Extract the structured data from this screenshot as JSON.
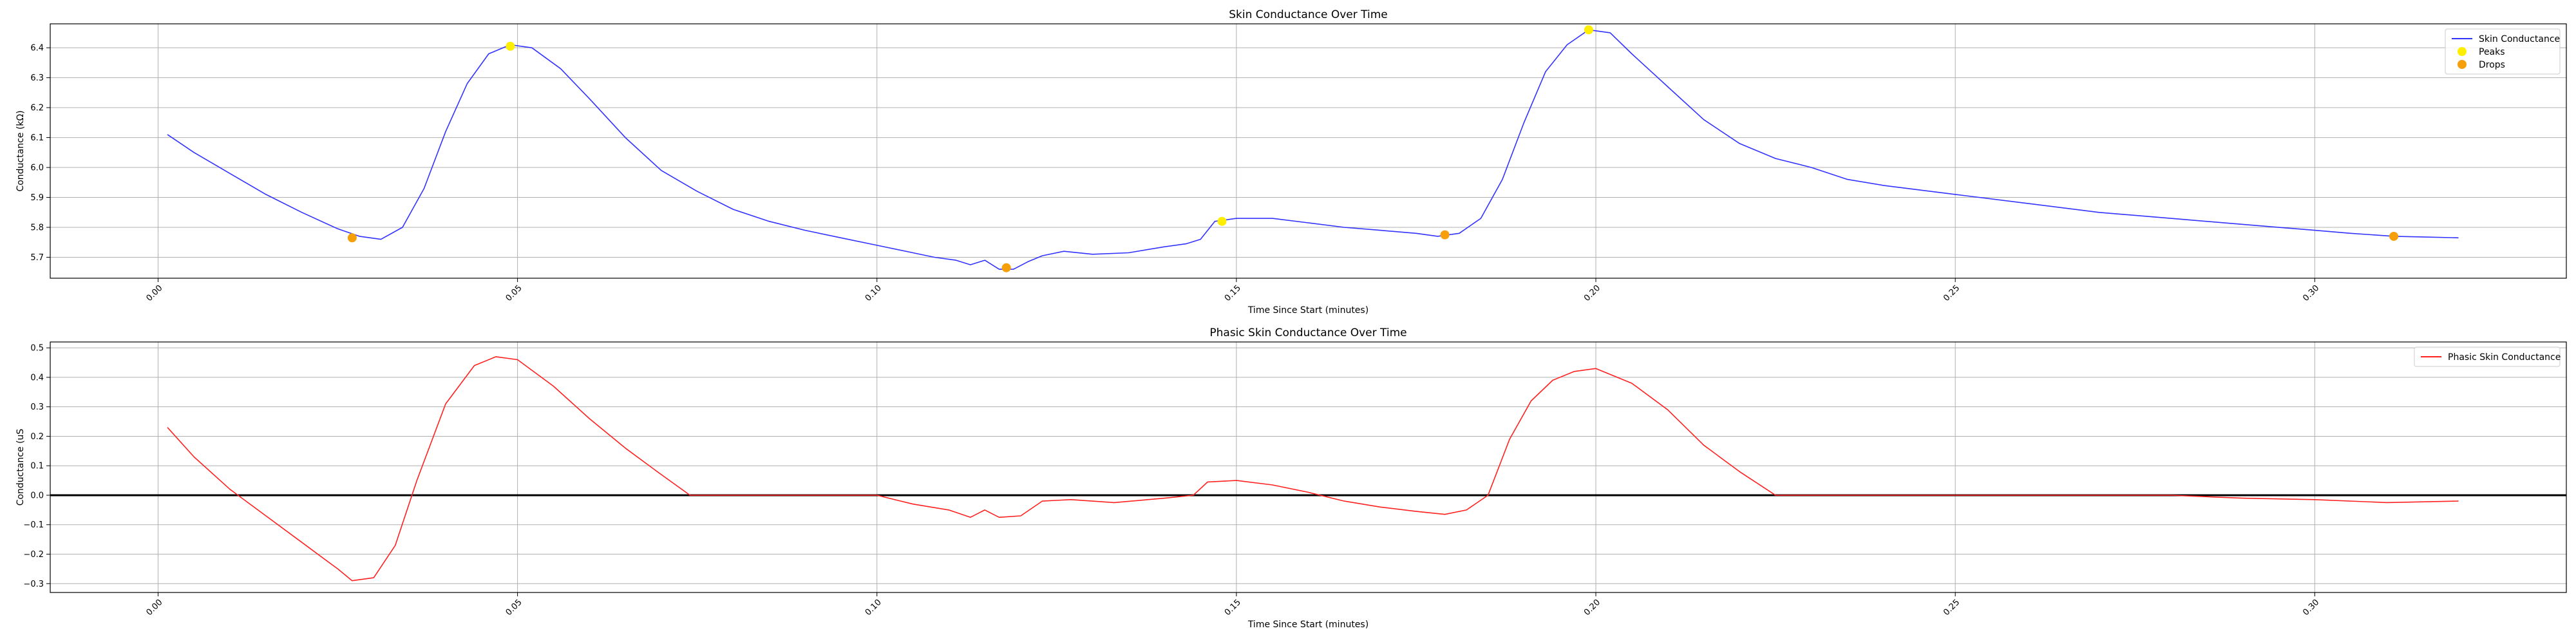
{
  "chart_data": [
    {
      "type": "line",
      "title": "Skin Conductance Over Time",
      "xlabel": "Time Since Start (minutes)",
      "ylabel": "Conductance (kΩ)",
      "xlim": [
        -0.015,
        0.335
      ],
      "ylim": [
        5.63,
        6.48
      ],
      "xticks": [
        0.0,
        0.05,
        0.1,
        0.15,
        0.2,
        0.25,
        0.3
      ],
      "xtick_labels": [
        "0.00",
        "0.05",
        "0.10",
        "0.15",
        "0.20",
        "0.25",
        "0.30"
      ],
      "yticks": [
        5.7,
        5.8,
        5.9,
        6.0,
        6.1,
        6.2,
        6.3,
        6.4
      ],
      "ytick_labels": [
        "5.7",
        "5.8",
        "5.9",
        "6.0",
        "6.1",
        "6.2",
        "6.3",
        "6.4"
      ],
      "xtick_rotation": 45,
      "grid": true,
      "legend_position": "top-right",
      "series": [
        {
          "name": "Skin Conductance",
          "kind": "line",
          "color": "#3333ff",
          "x": [
            0.0013,
            0.005,
            0.01,
            0.015,
            0.02,
            0.025,
            0.028,
            0.031,
            0.034,
            0.037,
            0.04,
            0.043,
            0.046,
            0.049,
            0.052,
            0.056,
            0.06,
            0.065,
            0.07,
            0.075,
            0.08,
            0.085,
            0.09,
            0.095,
            0.1,
            0.105,
            0.108,
            0.111,
            0.113,
            0.115,
            0.117,
            0.119,
            0.121,
            0.123,
            0.126,
            0.13,
            0.135,
            0.14,
            0.143,
            0.145,
            0.147,
            0.15,
            0.155,
            0.16,
            0.165,
            0.17,
            0.175,
            0.178,
            0.181,
            0.184,
            0.187,
            0.19,
            0.193,
            0.196,
            0.199,
            0.202,
            0.205,
            0.21,
            0.215,
            0.22,
            0.225,
            0.23,
            0.235,
            0.24,
            0.245,
            0.25,
            0.26,
            0.27,
            0.28,
            0.29,
            0.3,
            0.305,
            0.311,
            0.315,
            0.32
          ],
          "y": [
            6.11,
            6.05,
            5.98,
            5.91,
            5.85,
            5.795,
            5.77,
            5.76,
            5.8,
            5.93,
            6.12,
            6.28,
            6.38,
            6.41,
            6.4,
            6.33,
            6.23,
            6.1,
            5.99,
            5.92,
            5.86,
            5.82,
            5.79,
            5.765,
            5.74,
            5.715,
            5.7,
            5.69,
            5.675,
            5.69,
            5.66,
            5.66,
            5.685,
            5.705,
            5.72,
            5.71,
            5.715,
            5.735,
            5.745,
            5.76,
            5.82,
            5.83,
            5.83,
            5.815,
            5.8,
            5.79,
            5.78,
            5.77,
            5.78,
            5.83,
            5.96,
            6.15,
            6.32,
            6.41,
            6.46,
            6.45,
            6.38,
            6.27,
            6.16,
            6.08,
            6.03,
            6.0,
            5.96,
            5.94,
            5.925,
            5.91,
            5.88,
            5.85,
            5.83,
            5.81,
            5.79,
            5.78,
            5.77,
            5.768,
            5.765
          ]
        },
        {
          "name": "Peaks",
          "kind": "scatter",
          "color": "#ffee00",
          "x": [
            0.049,
            0.148,
            0.199
          ],
          "y": [
            6.405,
            5.82,
            6.46
          ]
        },
        {
          "name": "Drops",
          "kind": "scatter",
          "color": "#f5a00a",
          "x": [
            0.027,
            0.118,
            0.179,
            0.311
          ],
          "y": [
            5.765,
            5.665,
            5.775,
            5.77
          ]
        }
      ]
    },
    {
      "type": "line",
      "title": "Phasic Skin Conductance Over Time",
      "xlabel": "Time Since Start (minutes)",
      "ylabel": "Conductance (uS",
      "xlim": [
        -0.015,
        0.335
      ],
      "ylim": [
        -0.33,
        0.52
      ],
      "xticks": [
        0.0,
        0.05,
        0.1,
        0.15,
        0.2,
        0.25,
        0.3
      ],
      "xtick_labels": [
        "0.00",
        "0.05",
        "0.10",
        "0.15",
        "0.20",
        "0.25",
        "0.30"
      ],
      "yticks": [
        -0.3,
        -0.2,
        -0.1,
        0.0,
        0.1,
        0.2,
        0.3,
        0.4,
        0.5
      ],
      "ytick_labels": [
        "−0.3",
        "−0.2",
        "−0.1",
        "0.0",
        "0.1",
        "0.2",
        "0.3",
        "0.4",
        "0.5"
      ],
      "xtick_rotation": 45,
      "grid": true,
      "legend_position": "top-right",
      "hline": {
        "y": 0.0,
        "color": "#000000"
      },
      "series": [
        {
          "name": "Phasic Skin Conductance",
          "kind": "line",
          "color": "#ff2020",
          "x": [
            0.0013,
            0.005,
            0.01,
            0.015,
            0.02,
            0.025,
            0.027,
            0.03,
            0.033,
            0.036,
            0.04,
            0.044,
            0.047,
            0.05,
            0.055,
            0.06,
            0.065,
            0.07,
            0.074,
            0.1,
            0.105,
            0.11,
            0.113,
            0.115,
            0.117,
            0.12,
            0.123,
            0.127,
            0.133,
            0.14,
            0.144,
            0.146,
            0.15,
            0.155,
            0.16,
            0.165,
            0.17,
            0.175,
            0.179,
            0.182,
            0.185,
            0.188,
            0.191,
            0.194,
            0.197,
            0.2,
            0.205,
            0.21,
            0.215,
            0.22,
            0.225,
            0.28,
            0.29,
            0.3,
            0.31,
            0.32
          ],
          "y": [
            0.23,
            0.13,
            0.02,
            -0.07,
            -0.16,
            -0.25,
            -0.29,
            -0.28,
            -0.17,
            0.05,
            0.31,
            0.44,
            0.47,
            0.46,
            0.37,
            0.26,
            0.16,
            0.07,
            0.0,
            0.0,
            -0.03,
            -0.05,
            -0.075,
            -0.05,
            -0.075,
            -0.07,
            -0.02,
            -0.015,
            -0.025,
            -0.01,
            0.0,
            0.045,
            0.05,
            0.035,
            0.01,
            -0.02,
            -0.04,
            -0.055,
            -0.065,
            -0.05,
            0.0,
            0.19,
            0.32,
            0.39,
            0.42,
            0.43,
            0.38,
            0.29,
            0.17,
            0.08,
            0.0,
            0.0,
            -0.01,
            -0.015,
            -0.025,
            -0.02
          ]
        }
      ]
    }
  ]
}
